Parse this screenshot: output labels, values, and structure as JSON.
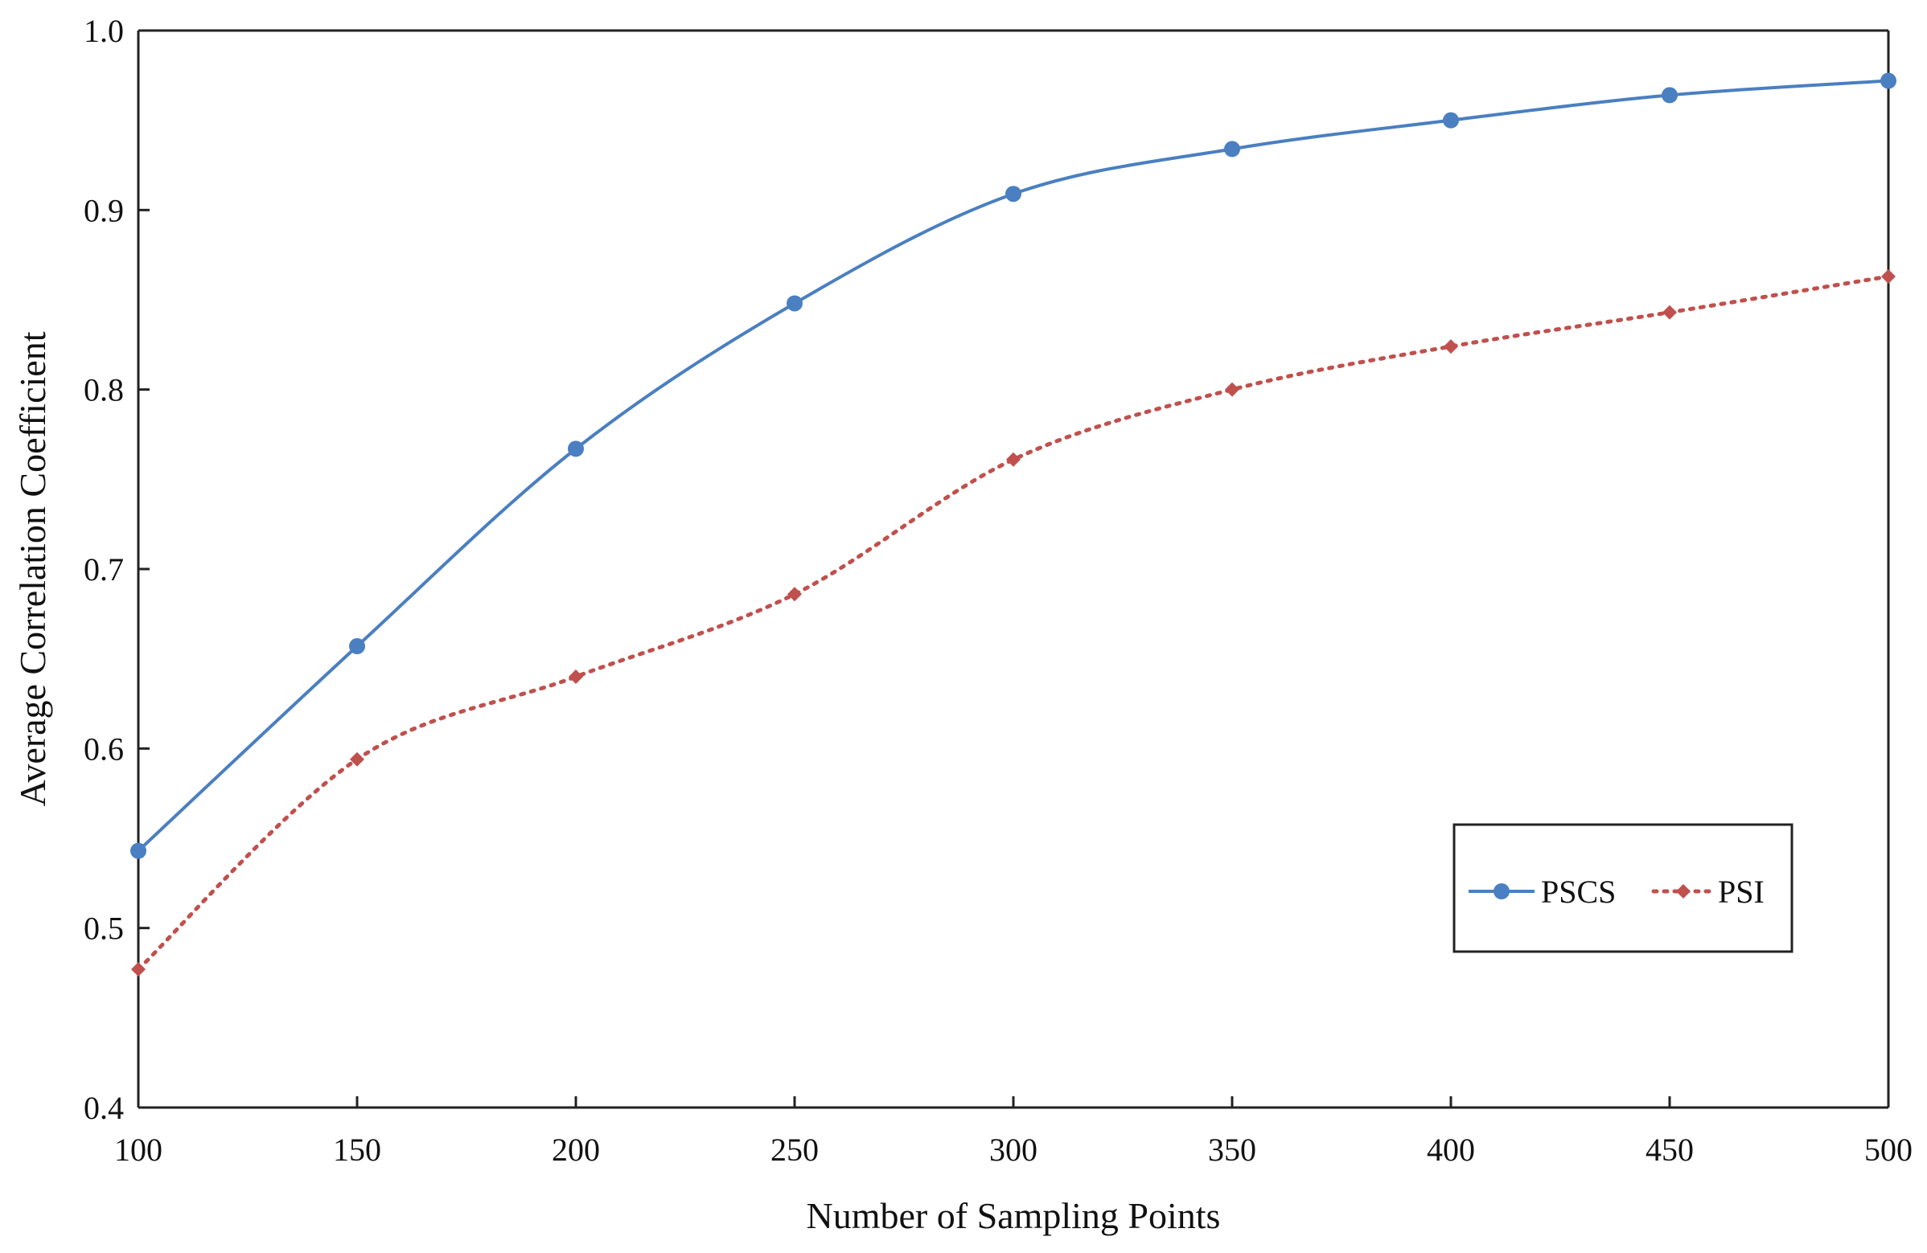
{
  "chart_data": {
    "type": "line",
    "title": "",
    "xlabel": "Number of Sampling Points",
    "ylabel": "Average Correlation Coefficient",
    "x": [
      100,
      150,
      200,
      250,
      300,
      350,
      400,
      450,
      500
    ],
    "x_ticks": [
      "100",
      "150",
      "200",
      "250",
      "300",
      "350",
      "400",
      "450",
      "500"
    ],
    "y_ticks": [
      "0.4",
      "0.5",
      "0.6",
      "0.7",
      "0.8",
      "0.9",
      "1.0"
    ],
    "y_tick_values": [
      0.4,
      0.5,
      0.6,
      0.7,
      0.8,
      0.9,
      1.0
    ],
    "xlim": [
      100,
      500
    ],
    "ylim": [
      0.4,
      1.0
    ],
    "grid": false,
    "legend_position": "bottom-right",
    "series": [
      {
        "name": "PSCS",
        "values": [
          0.543,
          0.657,
          0.767,
          0.848,
          0.909,
          0.934,
          0.95,
          0.964,
          0.972
        ],
        "color": "#4a7fc1",
        "line_style": "solid",
        "marker": "circle"
      },
      {
        "name": "PSI",
        "values": [
          0.477,
          0.594,
          0.64,
          0.686,
          0.761,
          0.8,
          0.824,
          0.843,
          0.863
        ],
        "color": "#c0504d",
        "line_style": "dotted",
        "marker": "diamond"
      }
    ]
  }
}
